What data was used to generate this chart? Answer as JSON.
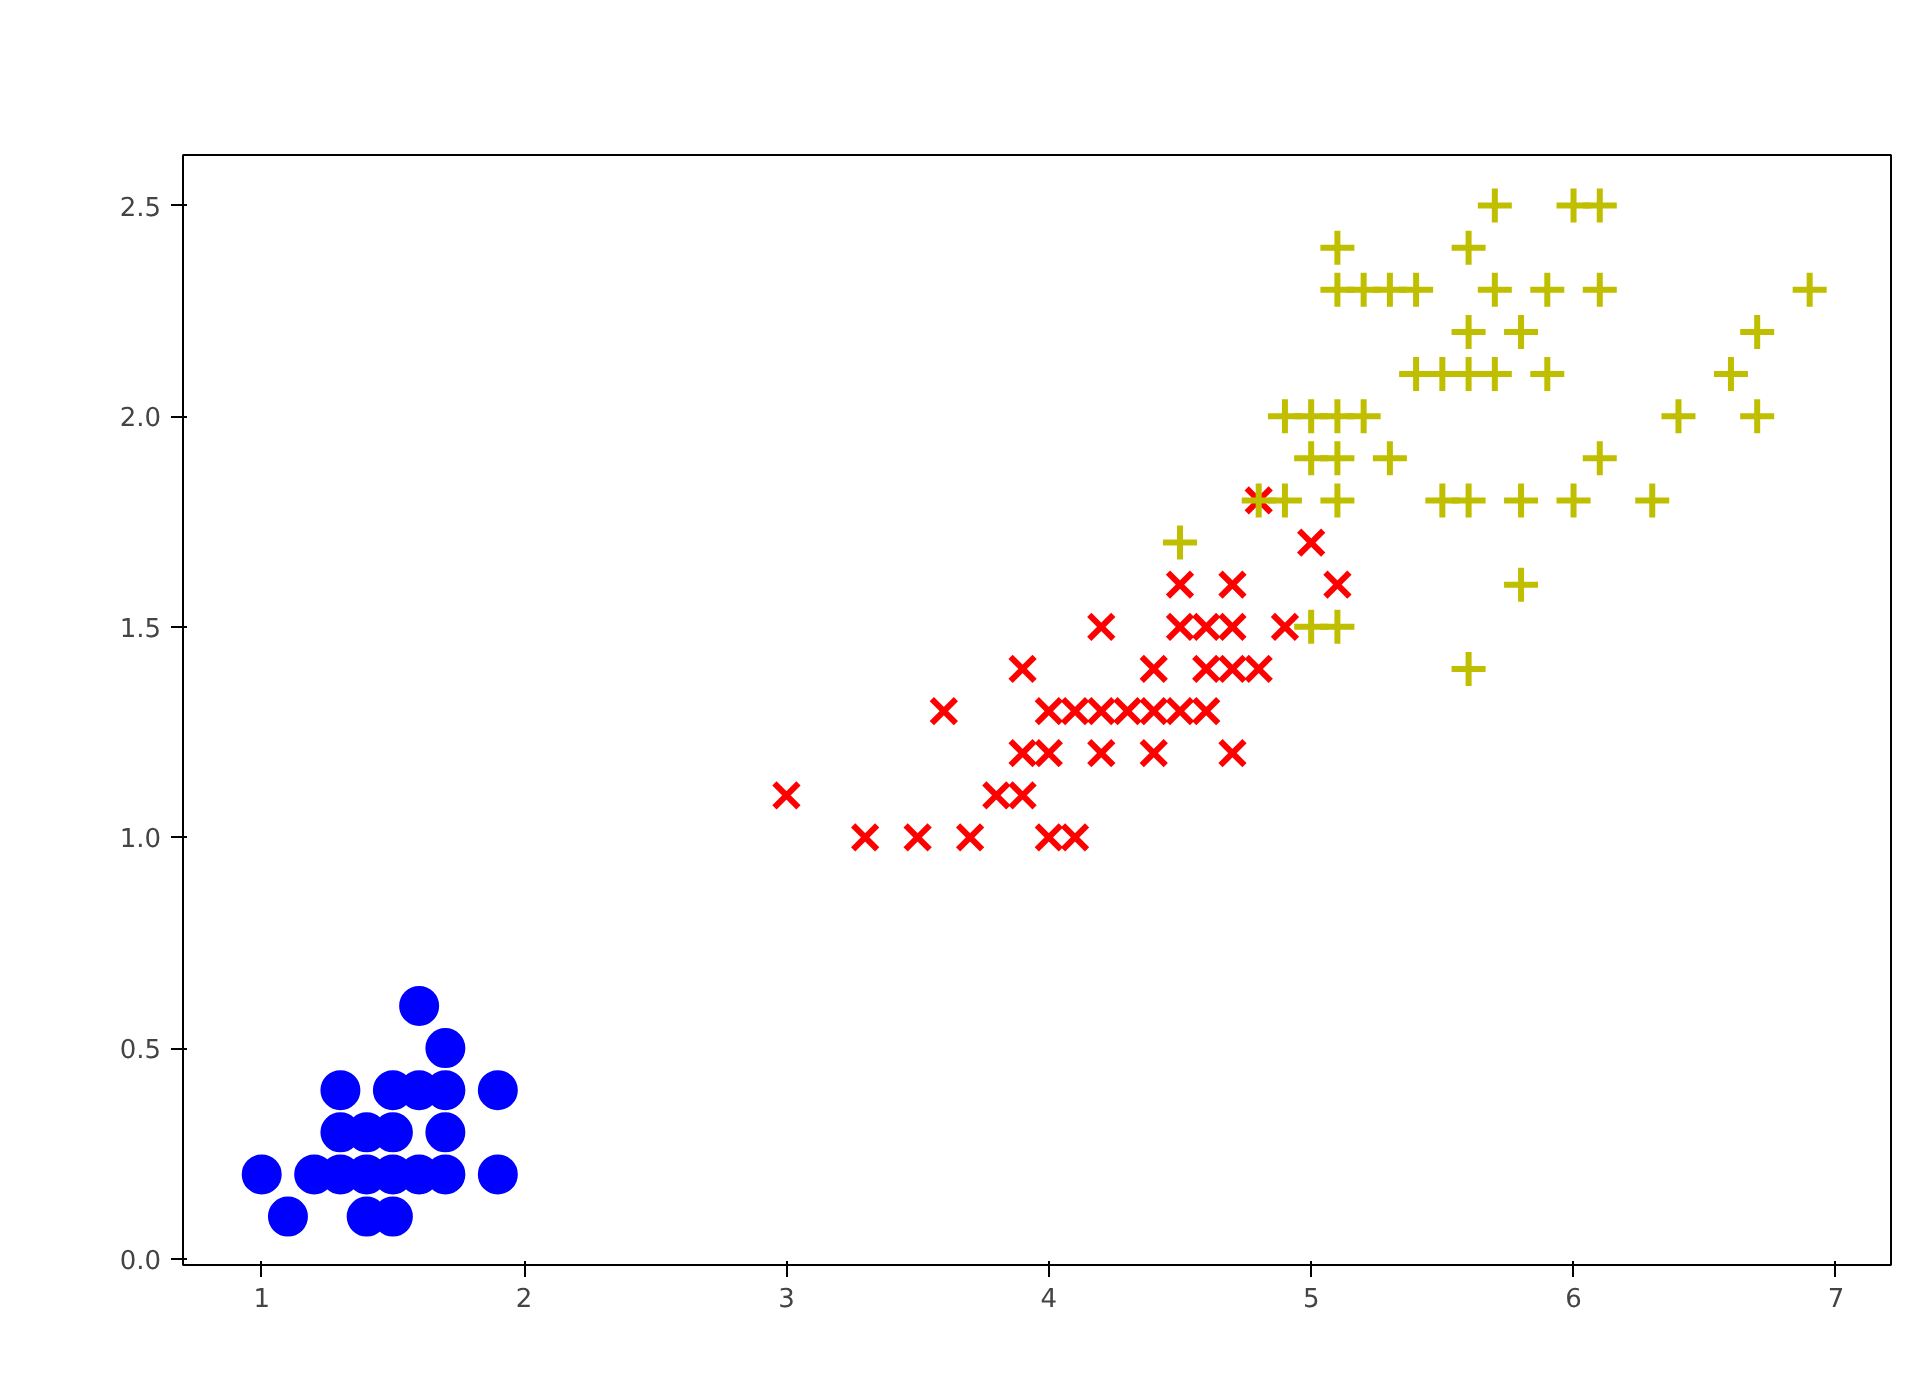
{
  "chart_data": {
    "type": "scatter",
    "xlim": [
      0.7,
      7.21
    ],
    "ylim": [
      -0.015,
      2.62
    ],
    "xticks": [
      1,
      2,
      3,
      4,
      5,
      6,
      7
    ],
    "yticks": [
      {
        "value": 0,
        "label": "0.0"
      },
      {
        "value": 0.5,
        "label": "0.5"
      },
      {
        "value": 1,
        "label": "1.0"
      },
      {
        "value": 1.5,
        "label": "1.5"
      },
      {
        "value": 2,
        "label": "2.0"
      },
      {
        "value": 2.5,
        "label": "2.5"
      }
    ],
    "grid": false,
    "series": [
      {
        "color": "#0000ff",
        "marker": "circle",
        "x": [
          1.4,
          1.3,
          1.5,
          1.7,
          1.4,
          1.5,
          1.6,
          1.4,
          1.1,
          1.2,
          1.5,
          1.3,
          1.7,
          1.5,
          1.7,
          1.0,
          1.7,
          1.9,
          1.6,
          1.3,
          1.6,
          1.9
        ],
        "values": [
          0.2,
          0.2,
          0.2,
          0.4,
          0.3,
          0.1,
          0.2,
          0.1,
          0.1,
          0.2,
          0.4,
          0.4,
          0.3,
          0.3,
          0.2,
          0.2,
          0.5,
          0.2,
          0.4,
          0.3,
          0.6,
          0.4
        ]
      },
      {
        "color": "#ff0000",
        "marker": "x",
        "x": [
          4.7,
          4.5,
          4.9,
          4.0,
          4.6,
          4.5,
          4.7,
          3.3,
          4.6,
          3.9,
          3.5,
          4.2,
          4.0,
          3.6,
          4.4,
          4.1,
          3.9,
          4.8,
          4.7,
          4.3,
          4.8,
          5.0,
          3.8,
          3.7,
          3.9,
          5.1,
          4.5,
          4.7,
          4.4,
          4.1,
          4.4,
          4.6,
          4.0,
          4.2,
          4.2,
          3.0
        ],
        "values": [
          1.4,
          1.5,
          1.5,
          1.3,
          1.5,
          1.3,
          1.6,
          1.0,
          1.3,
          1.4,
          1.0,
          1.5,
          1.0,
          1.3,
          1.4,
          1.0,
          1.1,
          1.8,
          1.2,
          1.3,
          1.4,
          1.7,
          1.1,
          1.0,
          1.2,
          1.6,
          1.6,
          1.5,
          1.3,
          1.3,
          1.2,
          1.4,
          1.2,
          1.3,
          1.2,
          1.1
        ]
      },
      {
        "color": "#bfbf00",
        "marker": "cross",
        "x": [
          6.0,
          5.1,
          5.9,
          5.6,
          5.8,
          6.6,
          4.5,
          6.3,
          5.8,
          6.1,
          5.1,
          5.3,
          5.5,
          5.0,
          5.1,
          5.3,
          5.5,
          6.7,
          6.9,
          5.0,
          5.7,
          4.9,
          6.7,
          4.9,
          5.7,
          6.0,
          4.8,
          5.6,
          5.8,
          6.1,
          6.4,
          5.6,
          5.1,
          5.6,
          6.1,
          5.6,
          5.4,
          5.1,
          5.9,
          5.7,
          5.2,
          5.0,
          5.2,
          5.4,
          5.1
        ],
        "values": [
          2.5,
          1.9,
          2.1,
          1.8,
          2.2,
          2.1,
          1.7,
          1.8,
          1.8,
          2.5,
          2.0,
          1.9,
          2.1,
          2.0,
          2.4,
          2.3,
          1.8,
          2.2,
          2.3,
          1.5,
          2.3,
          2.0,
          2.0,
          1.8,
          2.1,
          1.8,
          1.8,
          2.1,
          1.6,
          1.9,
          2.0,
          2.2,
          1.5,
          1.4,
          2.3,
          2.4,
          2.1,
          2.3,
          2.3,
          2.5,
          2.3,
          1.9,
          2.0,
          2.3,
          1.8
        ]
      }
    ]
  }
}
